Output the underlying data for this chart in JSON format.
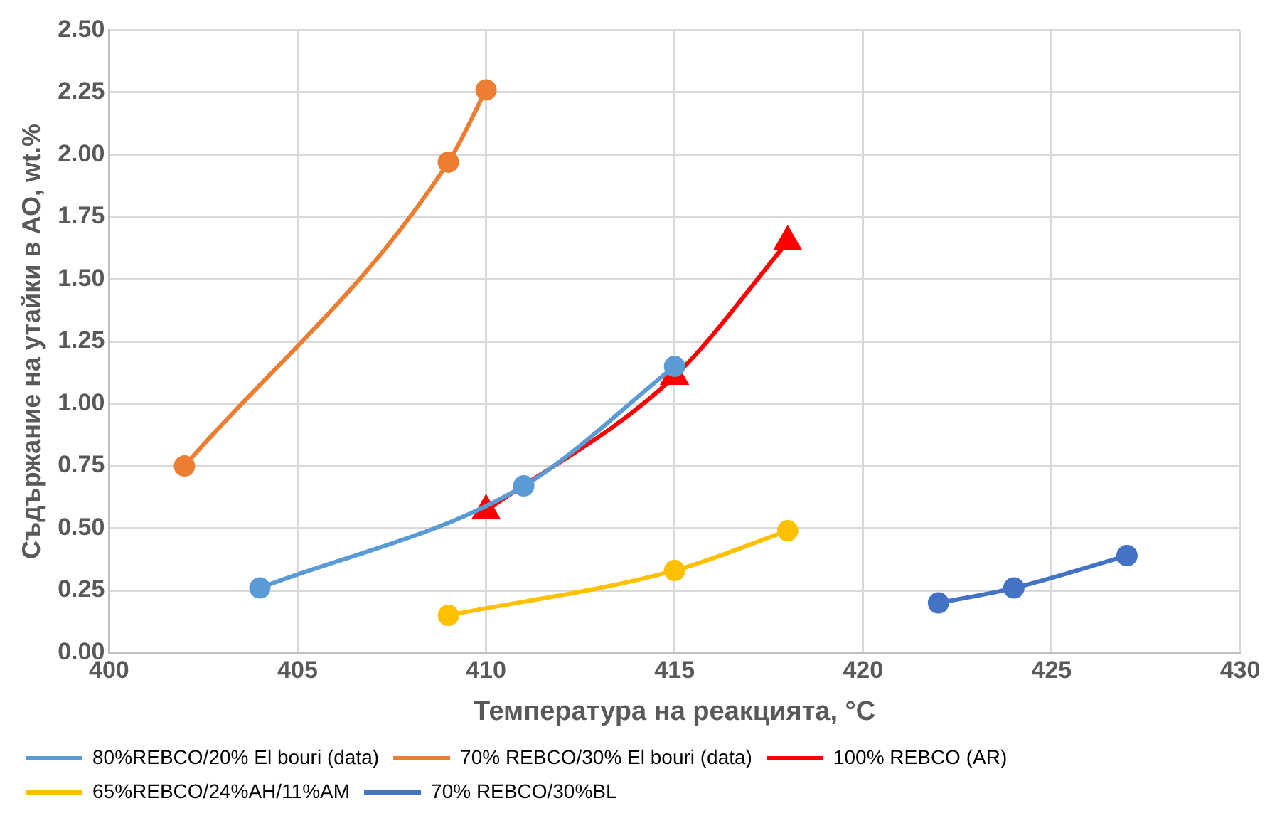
{
  "chart_data": {
    "type": "line",
    "xlabel": "Температура на реакцията, °C",
    "ylabel": "Съдържание на утайки в АО, wt.%",
    "xlim": [
      400,
      430
    ],
    "xticks": [
      400,
      405,
      410,
      415,
      420,
      425,
      430
    ],
    "ylim": [
      0,
      2.5
    ],
    "yticks": [
      {
        "value": 0,
        "label": "0.00"
      },
      {
        "value": 0.25,
        "label": "0.25"
      },
      {
        "value": 0.5,
        "label": "0.50"
      },
      {
        "value": 0.75,
        "label": "0.75"
      },
      {
        "value": 1,
        "label": "1.00"
      },
      {
        "value": 1.25,
        "label": "1.25"
      },
      {
        "value": 1.5,
        "label": "1.50"
      },
      {
        "value": 1.75,
        "label": "1.75"
      },
      {
        "value": 2,
        "label": "2.00"
      },
      {
        "value": 2.25,
        "label": "2.25"
      },
      {
        "value": 2.5,
        "label": "2.50"
      }
    ],
    "grid": true,
    "legend": "bottom",
    "marker": "circle",
    "series": [
      {
        "name": "80%REBCO/20% El bouri (data)",
        "color": "#5b9bd5",
        "x": [
          404,
          411,
          415
        ],
        "values": [
          0.26,
          0.67,
          1.15
        ]
      },
      {
        "name": "70% REBCO/30% El bouri (data)",
        "color": "#ed7d31",
        "x": [
          402,
          409,
          410
        ],
        "values": [
          0.75,
          1.97,
          2.26
        ]
      },
      {
        "name": "100% REBCO (AR)",
        "color": "#ff0000",
        "marker": "triangle",
        "x": [
          410,
          415,
          418
        ],
        "values": [
          0.57,
          1.11,
          1.65
        ]
      },
      {
        "name": "65%REBCO/24%AH/11%AM",
        "color": "#ffc000",
        "x": [
          409,
          415,
          418
        ],
        "values": [
          0.15,
          0.33,
          0.49
        ]
      },
      {
        "name": "70% REBCO/30%BL",
        "color": "#4472c4",
        "x": [
          422,
          424,
          427
        ],
        "values": [
          0.2,
          0.26,
          0.39
        ]
      }
    ]
  }
}
